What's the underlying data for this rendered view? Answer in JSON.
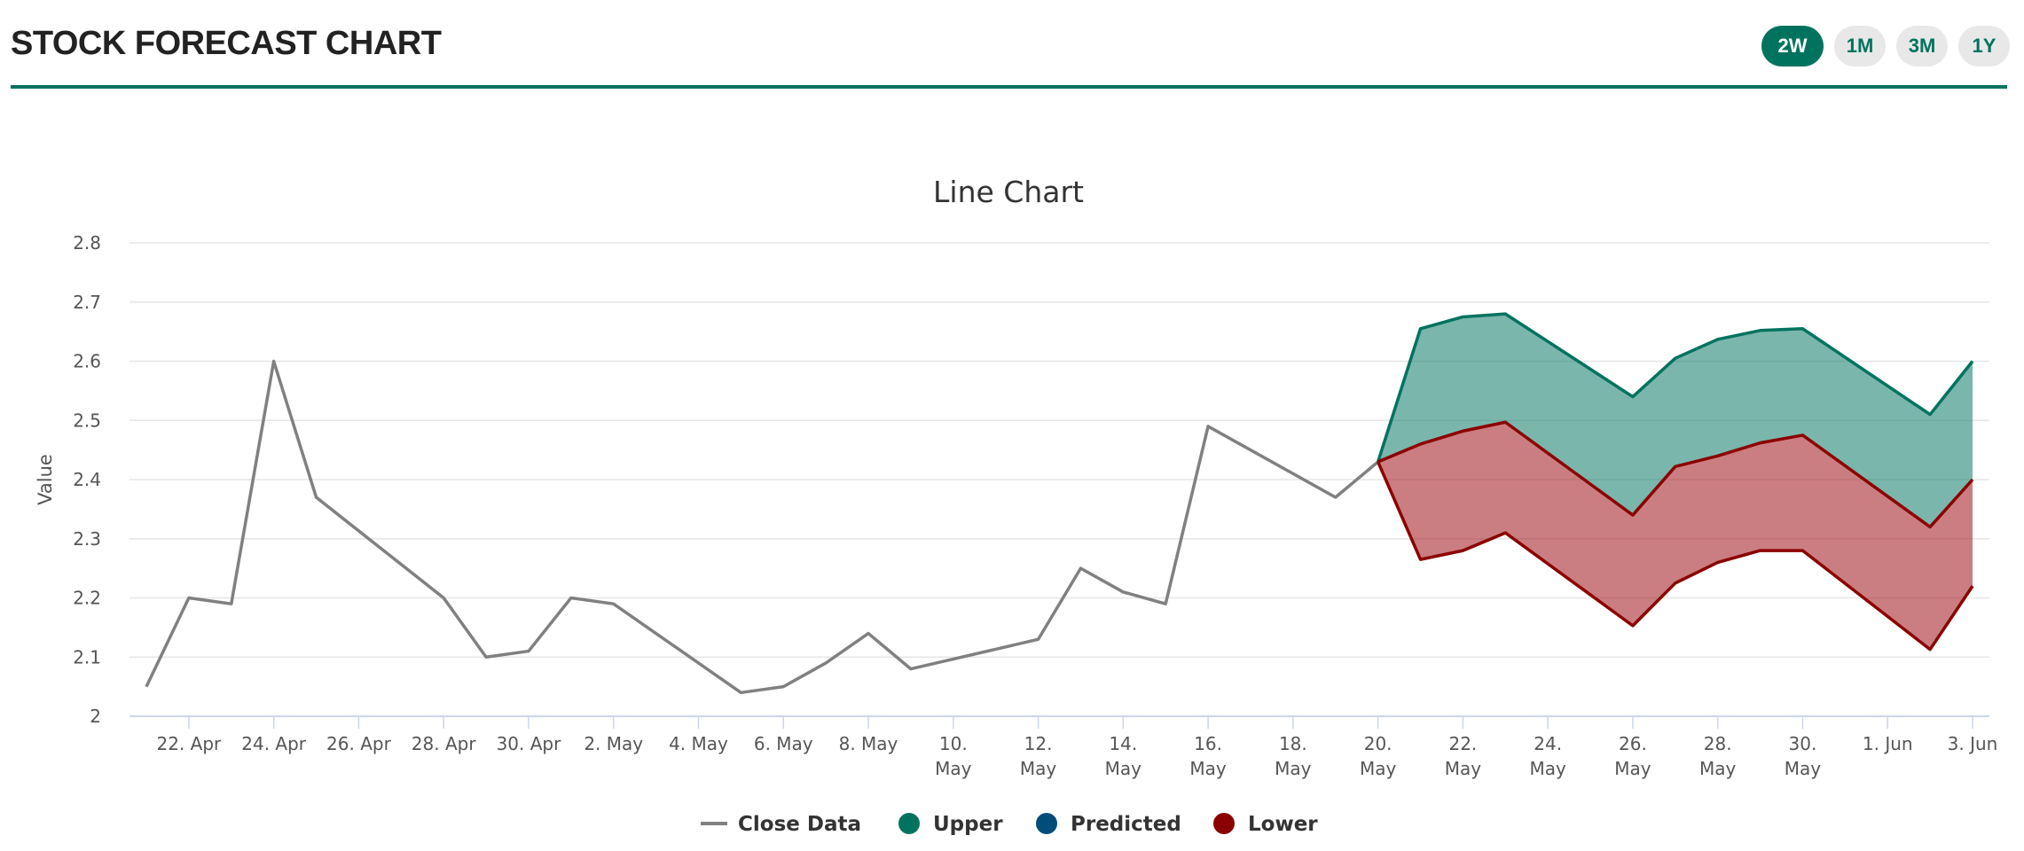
{
  "header": {
    "title": "STOCK FORECAST CHART",
    "ranges": [
      {
        "label": "2W",
        "active": true
      },
      {
        "label": "1M",
        "active": false
      },
      {
        "label": "3M",
        "active": false
      },
      {
        "label": "1Y",
        "active": false
      }
    ]
  },
  "colors": {
    "accent": "#00735f",
    "close": "#808080",
    "upper": "#00735f",
    "predicted": "#004d7a",
    "lower": "#8b0000"
  },
  "chart_data": {
    "type": "line",
    "title": "Line Chart",
    "xlabel": "",
    "ylabel": "Value",
    "ylim": [
      2.0,
      2.8
    ],
    "yticks": [
      "2",
      "2.1",
      "2.2",
      "2.3",
      "2.4",
      "2.5",
      "2.6",
      "2.7",
      "2.8"
    ],
    "xticks": [
      {
        "date": "Apr 22",
        "label": [
          "22. Apr"
        ]
      },
      {
        "date": "Apr 24",
        "label": [
          "24. Apr"
        ]
      },
      {
        "date": "Apr 26",
        "label": [
          "26. Apr"
        ]
      },
      {
        "date": "Apr 28",
        "label": [
          "28. Apr"
        ]
      },
      {
        "date": "Apr 30",
        "label": [
          "30. Apr"
        ]
      },
      {
        "date": "May 2",
        "label": [
          "2. May"
        ]
      },
      {
        "date": "May 4",
        "label": [
          "4. May"
        ]
      },
      {
        "date": "May 6",
        "label": [
          "6. May"
        ]
      },
      {
        "date": "May 8",
        "label": [
          "8. May"
        ]
      },
      {
        "date": "May 10",
        "label": [
          "10.",
          "May"
        ]
      },
      {
        "date": "May 12",
        "label": [
          "12.",
          "May"
        ]
      },
      {
        "date": "May 14",
        "label": [
          "14.",
          "May"
        ]
      },
      {
        "date": "May 16",
        "label": [
          "16.",
          "May"
        ]
      },
      {
        "date": "May 18",
        "label": [
          "18.",
          "May"
        ]
      },
      {
        "date": "May 20",
        "label": [
          "20.",
          "May"
        ]
      },
      {
        "date": "May 22",
        "label": [
          "22.",
          "May"
        ]
      },
      {
        "date": "May 24",
        "label": [
          "24.",
          "May"
        ]
      },
      {
        "date": "May 26",
        "label": [
          "26.",
          "May"
        ]
      },
      {
        "date": "May 28",
        "label": [
          "28.",
          "May"
        ]
      },
      {
        "date": "May 30",
        "label": [
          "30.",
          "May"
        ]
      },
      {
        "date": "Jun 1",
        "label": [
          "1. Jun"
        ]
      },
      {
        "date": "Jun 3",
        "label": [
          "3. Jun"
        ]
      }
    ],
    "legend_position": "bottom-center",
    "grid": true,
    "series": [
      {
        "name": "Close Data",
        "key": "close",
        "marker": "line",
        "x": [
          "Apr 21",
          "Apr 22",
          "Apr 23",
          "Apr 24",
          "Apr 25",
          "Apr 28",
          "Apr 29",
          "Apr 30",
          "May 1",
          "May 2",
          "May 5",
          "May 6",
          "May 7",
          "May 8",
          "May 9",
          "May 12",
          "May 13",
          "May 14",
          "May 15",
          "May 16",
          "May 19",
          "May 20"
        ],
        "values": [
          2.05,
          2.2,
          2.19,
          2.6,
          2.37,
          2.2,
          2.1,
          2.11,
          2.2,
          2.19,
          2.04,
          2.05,
          2.09,
          2.14,
          2.08,
          2.13,
          2.25,
          2.21,
          2.19,
          2.49,
          2.37,
          2.43
        ]
      },
      {
        "name": "Upper",
        "key": "upper",
        "marker": "circle",
        "x": [
          "May 20",
          "May 21",
          "May 22",
          "May 23",
          "May 26",
          "May 27",
          "May 28",
          "May 29",
          "May 30",
          "Jun 2",
          "Jun 3"
        ],
        "values": [
          2.43,
          2.655,
          2.675,
          2.68,
          2.54,
          2.605,
          2.637,
          2.652,
          2.655,
          2.51,
          2.6
        ]
      },
      {
        "name": "Predicted",
        "key": "predicted",
        "marker": "circle",
        "x": [
          "May 20",
          "May 21",
          "May 22",
          "May 23",
          "May 26",
          "May 27",
          "May 28",
          "May 29",
          "May 30",
          "Jun 2",
          "Jun 3"
        ],
        "values": [
          2.43,
          2.46,
          2.482,
          2.497,
          2.34,
          2.422,
          2.44,
          2.462,
          2.475,
          2.32,
          2.4
        ]
      },
      {
        "name": "Lower",
        "key": "lower",
        "marker": "circle",
        "x": [
          "May 20",
          "May 21",
          "May 22",
          "May 23",
          "May 26",
          "May 27",
          "May 28",
          "May 29",
          "May 30",
          "Jun 2",
          "Jun 3"
        ],
        "values": [
          2.43,
          2.265,
          2.28,
          2.31,
          2.153,
          2.225,
          2.26,
          2.28,
          2.28,
          2.113,
          2.22
        ]
      }
    ]
  }
}
